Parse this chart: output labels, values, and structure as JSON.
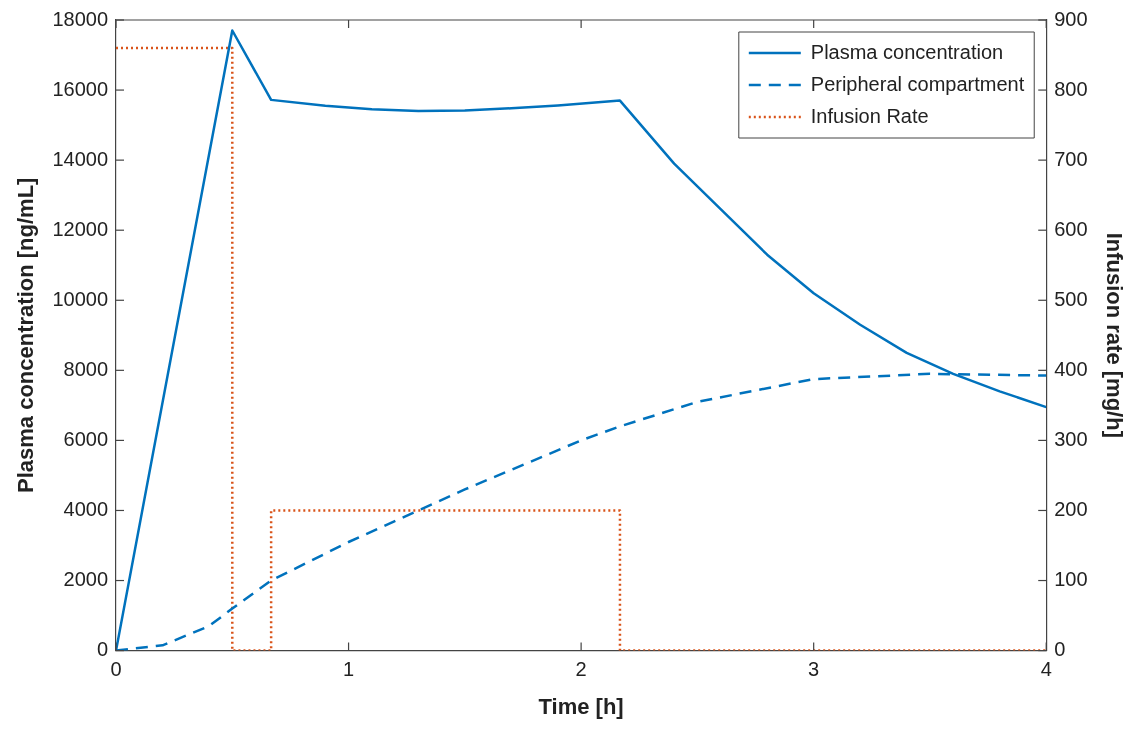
{
  "chart_data": {
    "type": "line",
    "xlabel": "Time [h]",
    "ylabel": "Plasma concentration [ng/mL]",
    "y2label": "Infusion rate [mg/h]",
    "xlim": [
      0,
      4
    ],
    "xticks": [
      0,
      1,
      2,
      3,
      4
    ],
    "ylim": [
      0,
      18000
    ],
    "yticks": [
      0,
      2000,
      4000,
      6000,
      8000,
      10000,
      12000,
      14000,
      16000,
      18000
    ],
    "y2lim": [
      0,
      900
    ],
    "y2ticks": [
      0,
      100,
      200,
      300,
      400,
      500,
      600,
      700,
      800,
      900
    ],
    "grid": false,
    "legend": "top right",
    "marker": "none",
    "series": [
      {
        "name": "Plasma concentration",
        "color": "#0072bd",
        "line_style": "solid",
        "x": [
          0,
          0.5,
          0.667,
          0.9,
          1.1,
          1.3,
          1.5,
          1.7,
          1.9,
          2.167,
          2.4,
          2.6,
          2.8,
          3.0,
          3.2,
          3.4,
          3.6,
          3.8,
          4.0
        ],
        "values": [
          0,
          17700,
          15720,
          15550,
          15450,
          15400,
          15420,
          15480,
          15560,
          15700,
          13900,
          12600,
          11300,
          10200,
          9300,
          8500,
          7900,
          7400,
          6950
        ]
      },
      {
        "name": "Peripheral compartment",
        "color": "#0072bd",
        "line_style": "dashed",
        "x": [
          0,
          0.2,
          0.4,
          0.5,
          0.667,
          1.0,
          1.3,
          1.5,
          2.0,
          2.167,
          2.5,
          3.0,
          3.5,
          4.0
        ],
        "values": [
          0,
          150,
          700,
          1200,
          2000,
          3100,
          4000,
          4600,
          6000,
          6400,
          7100,
          7750,
          7900,
          7850
        ]
      },
      {
        "name": "Infusion Rate",
        "color": "#d95319",
        "type": "step",
        "axis": "y2",
        "line_style": "dotted",
        "x": [
          0,
          0.5,
          0.667,
          2.167,
          4
        ],
        "values": [
          860,
          0,
          200,
          0,
          0
        ]
      }
    ]
  }
}
